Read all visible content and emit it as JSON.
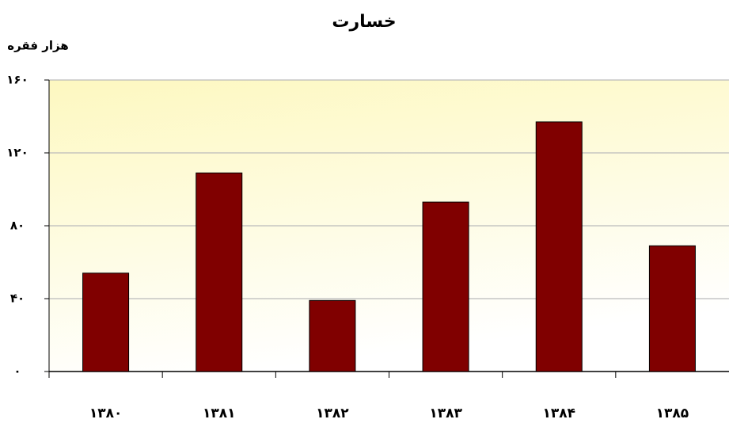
{
  "chart_data": {
    "type": "bar",
    "title": "خسارت",
    "y_label": "هزار فقره",
    "categories": [
      "۱۳۸۰",
      "۱۳۸۱",
      "۱۳۸۲",
      "۱۳۸۳",
      "۱۳۸۴",
      "۱۳۸۵"
    ],
    "values": [
      54,
      109,
      39,
      93,
      137,
      69
    ],
    "color": "#800000",
    "ylim": [
      0,
      160
    ],
    "yticks": [
      {
        "value": 0,
        "label": "۰"
      },
      {
        "value": 40,
        "label": "۴۰"
      },
      {
        "value": 80,
        "label": "۸۰"
      },
      {
        "value": 120,
        "label": "۱۲۰"
      },
      {
        "value": 160,
        "label": "۱۶۰"
      }
    ],
    "grid": true
  }
}
